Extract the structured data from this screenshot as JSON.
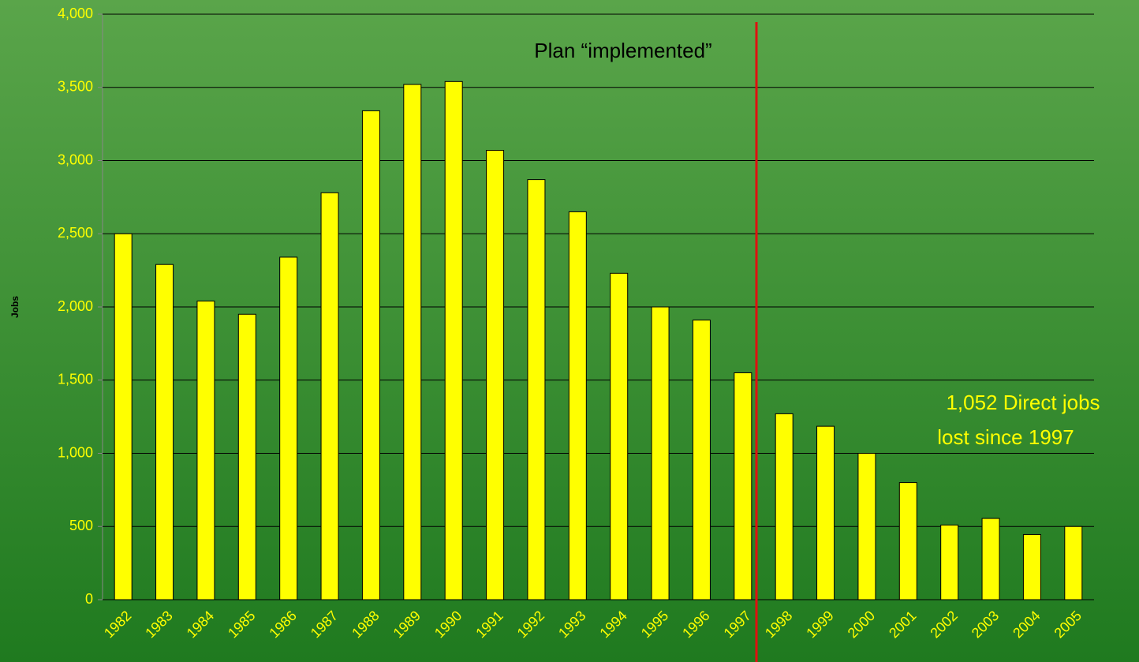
{
  "chart_data": {
    "type": "bar",
    "y_label": "Jobs",
    "categories": [
      "1982",
      "1983",
      "1984",
      "1985",
      "1986",
      "1987",
      "1988",
      "1989",
      "1990",
      "1991",
      "1992",
      "1993",
      "1994",
      "1995",
      "1996",
      "1997",
      "1998",
      "1999",
      "2000",
      "2001",
      "2002",
      "2003",
      "2004",
      "2005"
    ],
    "values": [
      2500,
      2290,
      2040,
      1950,
      2340,
      2780,
      3340,
      3520,
      3540,
      3070,
      2870,
      2650,
      2230,
      2000,
      1910,
      1550,
      1270,
      1185,
      1000,
      800,
      510,
      555,
      445,
      500
    ],
    "color": "#ffff00",
    "ylim": [
      0,
      4000
    ],
    "yticks": [
      0,
      500,
      {
        "value": 1000,
        "label": "1,000"
      },
      {
        "value": 1500,
        "label": "1,500"
      },
      {
        "value": 2000,
        "label": "2,000"
      },
      {
        "value": 2500,
        "label": "2,500"
      },
      {
        "value": 3000,
        "label": "3,000"
      },
      {
        "value": 3500,
        "label": "3,500"
      },
      {
        "value": 4000,
        "label": "4,000"
      }
    ],
    "grid": true,
    "annotations": [
      "Plan “implemented”",
      "1,052 Direct jobs",
      "lost since 1997"
    ]
  }
}
